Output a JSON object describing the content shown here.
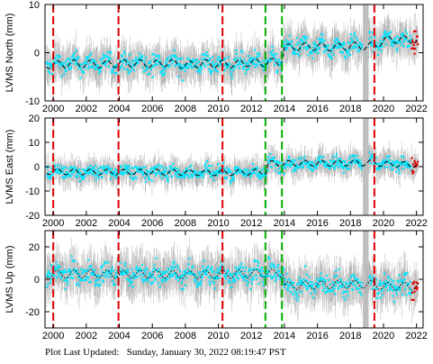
{
  "footer": {
    "label": "Plot Last Updated:",
    "timestamp": "Sunday, January 30, 2022 08:19:47 PST"
  },
  "colors": {
    "data_points": "#00e5ff",
    "error_bars": "#b4b4b4",
    "model_line": "#000000",
    "recent_points": "#e00000",
    "red_event_lines": "#e00000",
    "green_event_lines": "#00b000"
  },
  "chart_data": [
    {
      "type": "scatter",
      "title": "",
      "xlabel": "",
      "ylabel": "LVMS North (mm)",
      "xlim": [
        1999.5,
        2022.4
      ],
      "ylim": [
        -10,
        10
      ],
      "x_ticks": [
        2000,
        2002,
        2004,
        2006,
        2008,
        2010,
        2012,
        2014,
        2016,
        2018,
        2020,
        2022
      ],
      "y_ticks": [
        -10,
        0,
        10
      ],
      "grid": false,
      "model_line": {
        "style": "dashed",
        "x": [
          2000,
          2001,
          2002,
          2003,
          2004,
          2005,
          2006,
          2007,
          2008,
          2009,
          2010,
          2011,
          2012,
          2012.9,
          2013,
          2013.8,
          2014,
          2015,
          2016,
          2017,
          2018,
          2019,
          2019.5,
          2020,
          2021,
          2022
        ],
        "y": [
          -2.5,
          -2.3,
          -2.3,
          -2.4,
          -2.2,
          -2.2,
          -2.4,
          -2.0,
          -2.6,
          -2.2,
          -2.4,
          -2.3,
          -2.0,
          -2.1,
          -2.0,
          -1.9,
          1.0,
          1.2,
          1.3,
          1.1,
          1.4,
          1.3,
          1.5,
          2.6,
          2.8,
          2.5
        ],
        "seasonal_amplitude": 0.8
      },
      "noise": 1.8,
      "events_red": [
        2000.0,
        2003.95,
        2010.25,
        2019.45
      ],
      "events_green": [
        2012.85,
        2013.85
      ],
      "gap_band": [
        2018.75,
        2019.1
      ]
    },
    {
      "type": "scatter",
      "title": "",
      "xlabel": "",
      "ylabel": "LVMS East (mm)",
      "xlim": [
        1999.5,
        2022.4
      ],
      "ylim": [
        -20,
        20
      ],
      "x_ticks": [
        2000,
        2002,
        2004,
        2006,
        2008,
        2010,
        2012,
        2014,
        2016,
        2018,
        2020,
        2022
      ],
      "y_ticks": [
        -20,
        -10,
        0,
        10,
        20
      ],
      "grid": false,
      "model_line": {
        "style": "dashed",
        "x": [
          2000,
          2002,
          2004,
          2006,
          2008,
          2010,
          2012,
          2012.9,
          2013,
          2014,
          2016,
          2018,
          2019.5,
          2020,
          2022
        ],
        "y": [
          -2.0,
          -2.2,
          -2.3,
          -2.2,
          -2.4,
          -2.5,
          -2.3,
          -2.0,
          1.2,
          1.3,
          1.4,
          1.5,
          1.6,
          1.0,
          0.8
        ],
        "seasonal_amplitude": 1.2
      },
      "noise": 2.5,
      "events_red": [
        2000.0,
        2003.95,
        2010.25,
        2019.45
      ],
      "events_green": [
        2012.85,
        2013.85
      ],
      "gap_band": [
        2018.75,
        2019.1
      ]
    },
    {
      "type": "scatter",
      "title": "",
      "xlabel": "",
      "ylabel": "LVMS Up (mm)",
      "xlim": [
        1999.5,
        2022.4
      ],
      "ylim": [
        -30,
        30
      ],
      "x_ticks": [
        2000,
        2002,
        2004,
        2006,
        2008,
        2010,
        2012,
        2014,
        2016,
        2018,
        2020,
        2022
      ],
      "x_tick_labels": [
        "2000",
        "2002",
        "2004",
        "2006",
        "2008",
        "2010",
        "2012",
        "2014",
        "2016",
        "2018",
        "2020",
        "2022"
      ],
      "y_ticks": [
        -20,
        0,
        20
      ],
      "grid": false,
      "model_line": {
        "style": "dotted",
        "x": [
          2000,
          2002,
          2004,
          2006,
          2008,
          2010,
          2012,
          2013,
          2013.9,
          2014,
          2016,
          2018,
          2019.5,
          2020,
          2022
        ],
        "y": [
          3.0,
          3.5,
          3.0,
          3.2,
          2.8,
          3.0,
          3.5,
          3.8,
          4.0,
          -4.0,
          -3.5,
          -3.0,
          -3.2,
          -4.5,
          -4.0
        ],
        "seasonal_amplitude": 2.5
      },
      "noise": 6.0,
      "events_red": [
        2000.0,
        2003.95,
        2010.25,
        2019.45
      ],
      "events_green": [
        2012.85,
        2013.85
      ],
      "gap_band": [
        2018.75,
        2019.1
      ]
    }
  ]
}
